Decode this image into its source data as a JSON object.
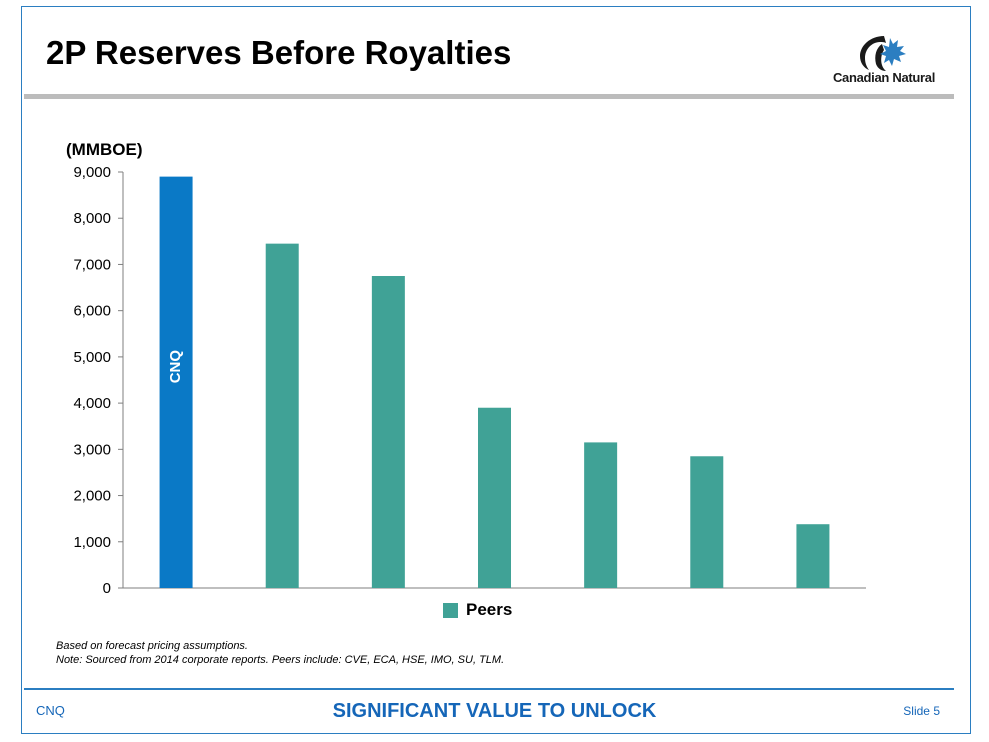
{
  "slide": {
    "title": "2P Reserves Before Royalties",
    "logo_text": "Canadian Natural",
    "notes": [
      "Based on forecast pricing assumptions.",
      "Note: Sourced from 2014 corporate reports. Peers include: CVE, ECA, HSE, IMO, SU, TLM."
    ],
    "footer": {
      "left": "CNQ",
      "center": "SIGNIFICANT VALUE TO UNLOCK",
      "right": "Slide 5"
    },
    "colors": {
      "cnq": "#0a79c6",
      "peers": "#40a296",
      "accent": "#1566b8"
    }
  },
  "chart_data": {
    "type": "bar",
    "title": "",
    "ylabel": "(MMBOE)",
    "xlabel": "",
    "ylim": [
      0,
      9000
    ],
    "yticks": [
      0,
      1000,
      2000,
      3000,
      4000,
      5000,
      6000,
      7000,
      8000,
      9000
    ],
    "ytick_labels": [
      "0",
      "1,000",
      "2,000",
      "3,000",
      "4,000",
      "5,000",
      "6,000",
      "7,000",
      "8,000",
      "9,000"
    ],
    "bars": [
      {
        "value": 8900,
        "label": "CNQ",
        "group": "cnq"
      },
      {
        "value": 7450,
        "label": "",
        "group": "peers"
      },
      {
        "value": 6750,
        "label": "",
        "group": "peers"
      },
      {
        "value": 3900,
        "label": "",
        "group": "peers"
      },
      {
        "value": 3150,
        "label": "",
        "group": "peers"
      },
      {
        "value": 2850,
        "label": "",
        "group": "peers"
      },
      {
        "value": 1380,
        "label": "",
        "group": "peers"
      }
    ],
    "legend": {
      "label": "Peers",
      "position": "bottom"
    },
    "grid": false
  }
}
